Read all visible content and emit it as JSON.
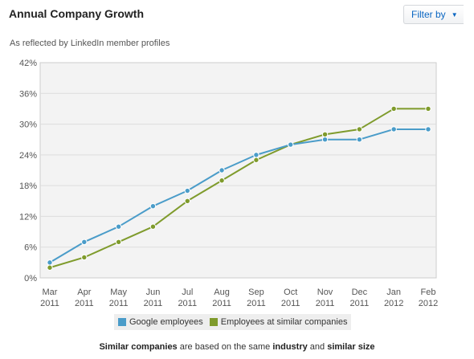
{
  "header": {
    "title": "Annual Company Growth",
    "filter_label": "Filter by",
    "subtitle": "As reflected by LinkedIn member profiles"
  },
  "footer": {
    "part1": "Similar companies",
    "part2": " are based on the same ",
    "part3": "industry",
    "part4": " and ",
    "part5": "similar size"
  },
  "colors": {
    "google": "#4a9cc9",
    "similar": "#7f9b2c",
    "plot_bg": "#f3f3f3",
    "grid": "#dddddd"
  },
  "chart_data": {
    "type": "line",
    "title": "Annual Company Growth",
    "subtitle": "As reflected by LinkedIn member profiles",
    "categories": [
      [
        "Mar",
        "2011"
      ],
      [
        "Apr",
        "2011"
      ],
      [
        "May",
        "2011"
      ],
      [
        "Jun",
        "2011"
      ],
      [
        "Jul",
        "2011"
      ],
      [
        "Aug",
        "2011"
      ],
      [
        "Sep",
        "2011"
      ],
      [
        "Oct",
        "2011"
      ],
      [
        "Nov",
        "2011"
      ],
      [
        "Dec",
        "2011"
      ],
      [
        "Jan",
        "2012"
      ],
      [
        "Feb",
        "2012"
      ]
    ],
    "y_ticks": [
      "0%",
      "6%",
      "12%",
      "18%",
      "24%",
      "30%",
      "36%",
      "42%"
    ],
    "ylim": [
      0,
      42
    ],
    "grid": true,
    "legend_position": "bottom",
    "series": [
      {
        "name": "Google employees",
        "color": "#4a9cc9",
        "values": [
          3,
          7,
          10,
          14,
          17,
          21,
          24,
          26,
          27,
          27,
          29,
          29
        ]
      },
      {
        "name": "Employees at similar companies",
        "color": "#7f9b2c",
        "values": [
          2,
          4,
          7,
          10,
          15,
          19,
          23,
          26,
          28,
          29,
          33,
          33
        ]
      }
    ]
  }
}
